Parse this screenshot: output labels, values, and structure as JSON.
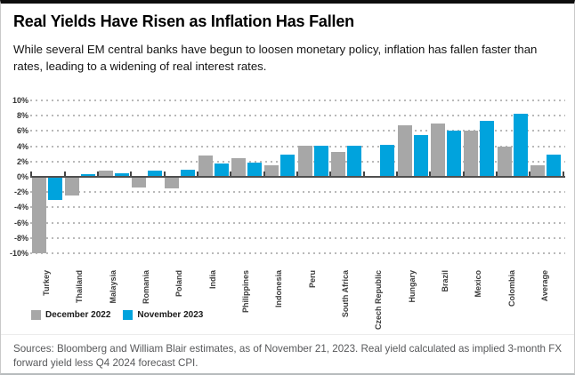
{
  "header": {
    "title": "Real Yields Have Risen as Inflation Has Fallen",
    "subtitle": "While several EM central banks have begun to loosen monetary policy, inflation has fallen faster than rates, leading to a widening of real interest rates."
  },
  "chart_data": {
    "type": "bar",
    "title": "Real Yields Have Risen as Inflation Has Fallen",
    "categories": [
      "Turkey",
      "Thailand",
      "Malaysia",
      "Romania",
      "Poland",
      "India",
      "Philippines",
      "Indonesia",
      "Peru",
      "South Africa",
      "Czech Republic",
      "Hungary",
      "Brazil",
      "Mexico",
      "Colombia",
      "Average"
    ],
    "series": [
      {
        "name": "December 2022",
        "color": "#a7a7a7",
        "values": [
          -10.0,
          -2.4,
          0.8,
          -1.4,
          -1.5,
          2.8,
          2.5,
          1.5,
          4.1,
          3.2,
          0.0,
          6.8,
          7.0,
          6.1,
          4.0,
          1.5
        ]
      },
      {
        "name": "November 2023",
        "color": "#00a3dd",
        "values": [
          -3.0,
          0.3,
          0.5,
          0.8,
          0.9,
          1.8,
          1.9,
          2.9,
          4.1,
          4.1,
          4.2,
          5.5,
          6.0,
          7.3,
          8.3,
          2.9
        ]
      }
    ],
    "xlabel": "",
    "ylabel": "",
    "ylim": [
      -10,
      10
    ],
    "ytick_step": 2,
    "ytick_suffix": "%",
    "grid": "horizontal-dotted",
    "legend_position": "bottom-left",
    "category_label_rotation": -90
  },
  "legend": {
    "items": [
      {
        "label": "December 2022",
        "color": "#a7a7a7"
      },
      {
        "label": "November 2023",
        "color": "#00a3dd"
      }
    ]
  },
  "footer": {
    "source_note": "Sources: Bloomberg and William Blair estimates, as of November 21, 2023. Real yield calculated as implied 3-month FX forward yield less Q4 2024 forecast CPI."
  }
}
